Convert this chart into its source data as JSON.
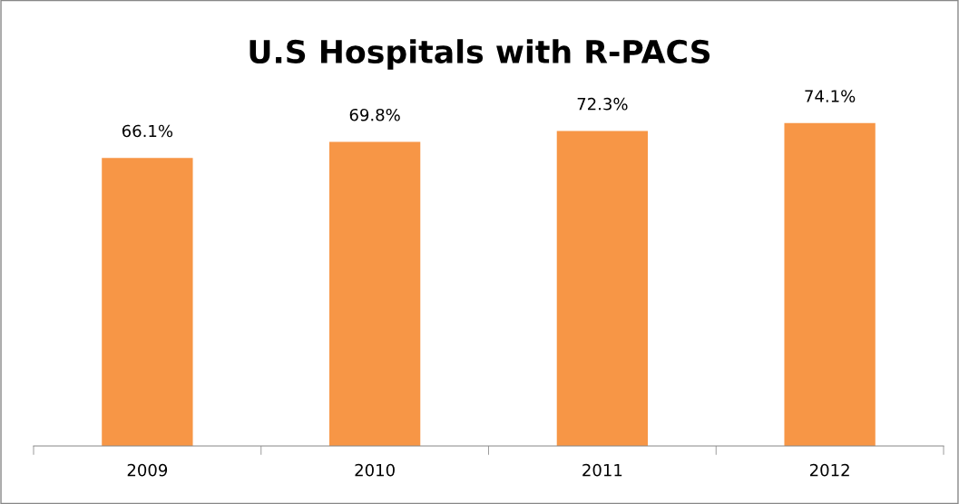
{
  "chart_data": {
    "type": "bar",
    "title": "U.S Hospitals with R-PACS",
    "categories": [
      "2009",
      "2010",
      "2011",
      "2012"
    ],
    "values": [
      66.1,
      69.8,
      72.3,
      74.1
    ],
    "value_labels": [
      "66.1%",
      "69.8%",
      "72.3%",
      "74.1%"
    ],
    "color": "#f79646",
    "tick_labels": "x",
    "grid": false,
    "legend": false
  }
}
